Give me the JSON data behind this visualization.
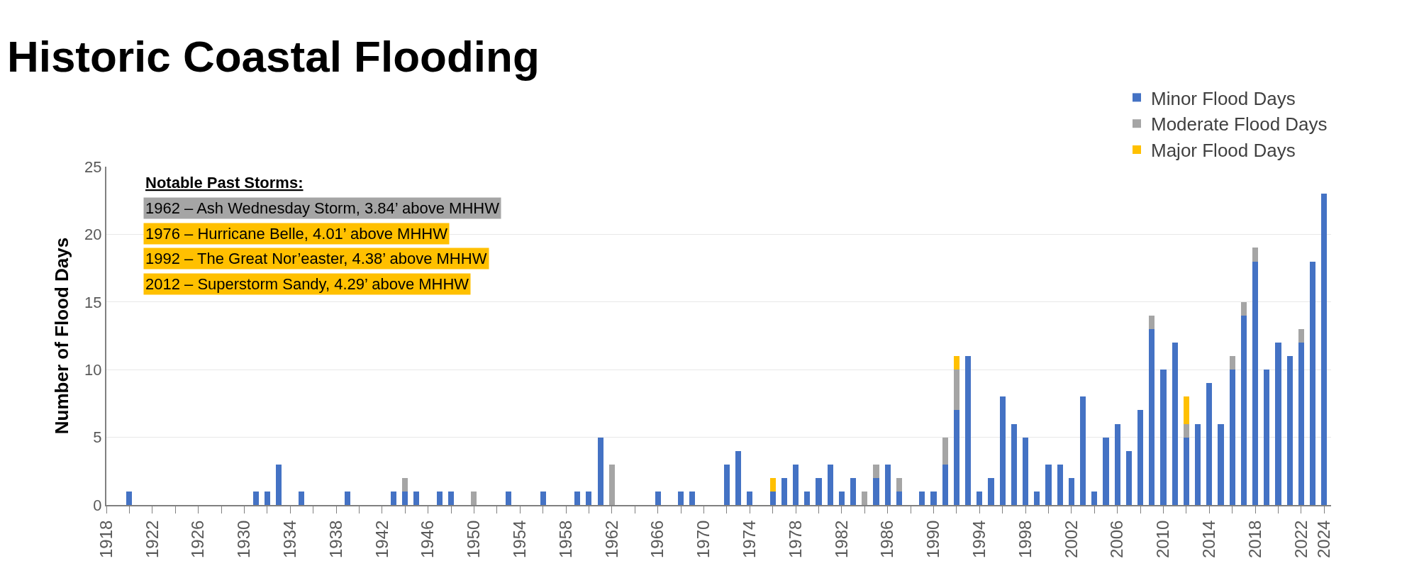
{
  "chart_data": {
    "type": "bar",
    "title": "Historic Coastal Flooding",
    "ylabel": "Number of Flood Days",
    "stacked": true,
    "x": [
      1920,
      1931,
      1932,
      1933,
      1935,
      1939,
      1943,
      1944,
      1945,
      1947,
      1948,
      1950,
      1953,
      1956,
      1959,
      1960,
      1961,
      1962,
      1966,
      1968,
      1969,
      1972,
      1973,
      1974,
      1976,
      1977,
      1978,
      1979,
      1980,
      1981,
      1982,
      1983,
      1984,
      1985,
      1986,
      1987,
      1989,
      1990,
      1991,
      1992,
      1993,
      1994,
      1995,
      1996,
      1997,
      1998,
      1999,
      2000,
      2001,
      2002,
      2003,
      2004,
      2005,
      2006,
      2007,
      2008,
      2009,
      2010,
      2011,
      2012,
      2013,
      2014,
      2015,
      2016,
      2017,
      2018,
      2019,
      2020,
      2021,
      2022,
      2023,
      2024
    ],
    "series": [
      {
        "name": "Minor Flood Days",
        "color": "#4472c4",
        "values": [
          1,
          1,
          1,
          3,
          1,
          1,
          1,
          1,
          1,
          1,
          1,
          null,
          1,
          1,
          1,
          1,
          5,
          null,
          1,
          1,
          1,
          3,
          4,
          1,
          1,
          2,
          3,
          1,
          2,
          3,
          1,
          2,
          null,
          2,
          3,
          1,
          1,
          1,
          3,
          7,
          11,
          1,
          2,
          8,
          6,
          5,
          1,
          3,
          3,
          2,
          8,
          1,
          5,
          6,
          4,
          7,
          13,
          10,
          12,
          5,
          6,
          9,
          6,
          10,
          14,
          18,
          10,
          12,
          11,
          12,
          18,
          23
        ]
      },
      {
        "name": "Moderate Flood Days",
        "color": "#a5a5a5",
        "values": [
          null,
          null,
          null,
          null,
          null,
          null,
          null,
          1,
          null,
          null,
          null,
          1,
          null,
          null,
          null,
          null,
          null,
          3,
          null,
          null,
          null,
          null,
          null,
          null,
          null,
          null,
          null,
          null,
          null,
          null,
          null,
          null,
          1,
          1,
          null,
          1,
          null,
          null,
          2,
          3,
          null,
          null,
          null,
          null,
          null,
          null,
          null,
          null,
          null,
          null,
          null,
          null,
          null,
          null,
          null,
          null,
          1,
          null,
          null,
          1,
          null,
          null,
          null,
          1,
          1,
          1,
          null,
          null,
          null,
          1,
          null,
          null
        ]
      },
      {
        "name": "Major Flood Days",
        "color": "#ffc000",
        "values": [
          null,
          null,
          null,
          null,
          null,
          null,
          null,
          null,
          null,
          null,
          null,
          null,
          null,
          null,
          null,
          null,
          null,
          null,
          null,
          null,
          null,
          null,
          null,
          null,
          1,
          null,
          null,
          null,
          null,
          null,
          null,
          null,
          null,
          null,
          null,
          null,
          null,
          null,
          null,
          1,
          null,
          null,
          null,
          null,
          null,
          null,
          null,
          null,
          null,
          null,
          null,
          null,
          null,
          null,
          null,
          null,
          null,
          null,
          null,
          2,
          null,
          null,
          null,
          null,
          null,
          null,
          null,
          null,
          null,
          null,
          null,
          null
        ]
      }
    ],
    "xlim": [
      1918,
      2024.6
    ],
    "xticks": [
      1918,
      {
        "value": 1920,
        "label": null
      },
      1922,
      {
        "value": 1924,
        "label": null
      },
      1926,
      {
        "value": 1928,
        "label": null
      },
      1930,
      {
        "value": 1932,
        "label": null
      },
      1934,
      {
        "value": 1936,
        "label": null
      },
      1938,
      {
        "value": 1940,
        "label": null
      },
      1942,
      {
        "value": 1944,
        "label": null
      },
      1946,
      {
        "value": 1948,
        "label": null
      },
      1950,
      {
        "value": 1952,
        "label": null
      },
      1954,
      {
        "value": 1956,
        "label": null
      },
      1958,
      {
        "value": 1960,
        "label": null
      },
      1962,
      {
        "value": 1964,
        "label": null
      },
      1966,
      {
        "value": 1968,
        "label": null
      },
      1970,
      {
        "value": 1972,
        "label": null
      },
      1974,
      {
        "value": 1976,
        "label": null
      },
      1978,
      {
        "value": 1980,
        "label": null
      },
      1982,
      {
        "value": 1984,
        "label": null
      },
      1986,
      {
        "value": 1988,
        "label": null
      },
      1990,
      {
        "value": 1992,
        "label": null
      },
      1994,
      {
        "value": 1996,
        "label": null
      },
      1998,
      {
        "value": 2000,
        "label": null
      },
      2002,
      {
        "value": 2004,
        "label": null
      },
      2006,
      {
        "value": 2008,
        "label": null
      },
      2010,
      {
        "value": 2012,
        "label": null
      },
      2014,
      {
        "value": 2016,
        "label": null
      },
      2018,
      {
        "value": 2020,
        "label": null
      },
      2022,
      2024
    ],
    "ylim": [
      0,
      25
    ],
    "yticks": [
      0,
      5,
      10,
      15,
      20,
      25
    ],
    "grid": "y",
    "legend": "top right",
    "annotations": [
      "Notable Past Storms:",
      "1962 – Ash Wednesday Storm, 3.84’ above MHHW",
      "1976 – Hurricane Belle, 4.01’ above MHHW",
      "1992 – The Great Nor’easter, 4.38’ above MHHW",
      "2012 – Superstorm Sandy, 4.29’ above MHHW"
    ]
  }
}
